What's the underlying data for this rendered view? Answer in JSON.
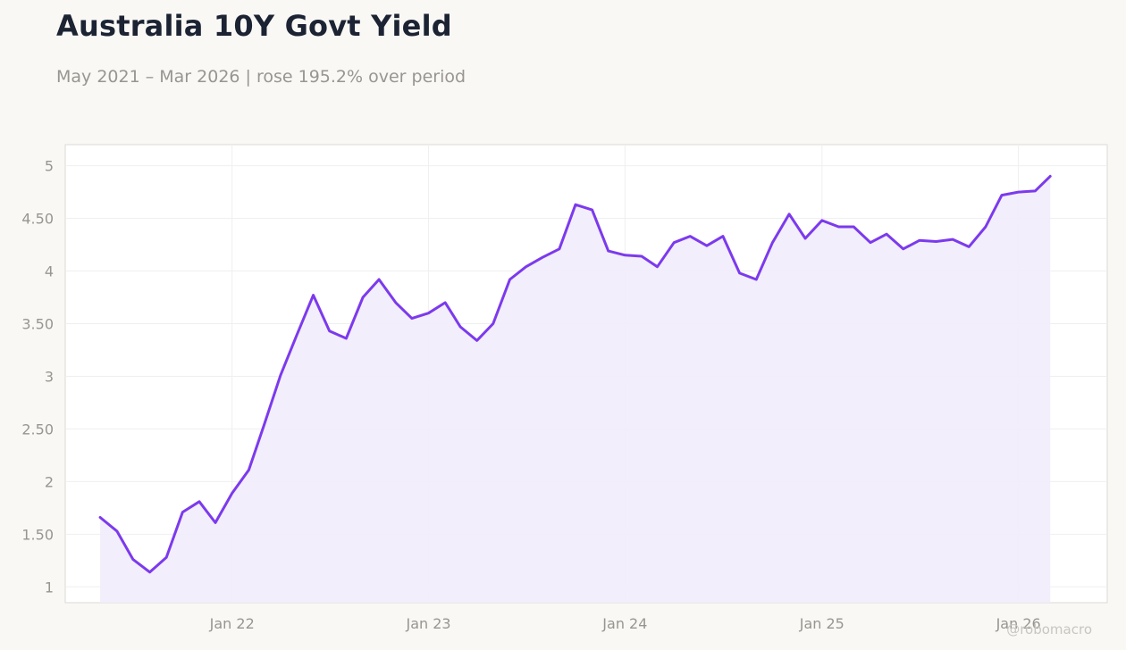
{
  "title": "Australia 10Y Govt Yield",
  "subtitle": "May 2021 – Mar 2026 | rose 195.2% over period",
  "watermark": "@robomacro",
  "colors": {
    "line": "#7c3aed",
    "fill": "#f1ecfc",
    "grid": "#efefef",
    "plot_bg": "#ffffff",
    "page_bg": "#f9f8f5"
  },
  "chart_data": {
    "type": "area",
    "title": "Australia 10Y Govt Yield",
    "subtitle": "May 2021 – Mar 2026 | rose 195.2% over period",
    "xlabel": "",
    "ylabel": "",
    "xlim": [
      "2021-02-25",
      "2026-06-15"
    ],
    "ylim": [
      0.85,
      5.2
    ],
    "grid": true,
    "x_ticks": [
      {
        "label": "Jan 22",
        "date": "2022-01-01"
      },
      {
        "label": "Jan 23",
        "date": "2023-01-01"
      },
      {
        "label": "Jan 24",
        "date": "2024-01-01"
      },
      {
        "label": "Jan 25",
        "date": "2025-01-01"
      },
      {
        "label": "Jan 26",
        "date": "2026-01-01"
      }
    ],
    "y_ticks": [
      {
        "label": "1",
        "value": 1
      },
      {
        "label": "1.50",
        "value": 1.5
      },
      {
        "label": "2",
        "value": 2
      },
      {
        "label": "2.50",
        "value": 2.5
      },
      {
        "label": "3",
        "value": 3
      },
      {
        "label": "3.50",
        "value": 3.5
      },
      {
        "label": "4",
        "value": 4
      },
      {
        "label": "4.50",
        "value": 4.5
      },
      {
        "label": "5",
        "value": 5
      }
    ],
    "series": [
      {
        "x": [
          "2021-05-01",
          "2021-06-01",
          "2021-07-01",
          "2021-08-01",
          "2021-09-01",
          "2021-10-01",
          "2021-11-01",
          "2021-12-01",
          "2022-01-01",
          "2022-02-01",
          "2022-03-01",
          "2022-04-01",
          "2022-05-01",
          "2022-06-01",
          "2022-07-01",
          "2022-08-01",
          "2022-09-01",
          "2022-10-01",
          "2022-11-01",
          "2022-12-01",
          "2023-01-01",
          "2023-02-01",
          "2023-03-01",
          "2023-04-01",
          "2023-05-01",
          "2023-06-01",
          "2023-07-01",
          "2023-08-01",
          "2023-09-01",
          "2023-10-01",
          "2023-11-01",
          "2023-12-01",
          "2024-01-01",
          "2024-02-01",
          "2024-03-01",
          "2024-04-01",
          "2024-05-01",
          "2024-06-01",
          "2024-07-01",
          "2024-08-01",
          "2024-09-01",
          "2024-10-01",
          "2024-11-01",
          "2024-12-01",
          "2025-01-01",
          "2025-02-01",
          "2025-03-01",
          "2025-04-01",
          "2025-05-01",
          "2025-06-01",
          "2025-07-01",
          "2025-08-01",
          "2025-09-01",
          "2025-10-01",
          "2025-11-01",
          "2025-12-01",
          "2026-01-01",
          "2026-02-01",
          "2026-03-01"
        ],
        "values": [
          1.66,
          1.53,
          1.26,
          1.14,
          1.28,
          1.71,
          1.81,
          1.61,
          1.89,
          2.11,
          2.53,
          3.01,
          3.39,
          3.77,
          3.43,
          3.36,
          3.75,
          3.92,
          3.7,
          3.55,
          3.6,
          3.7,
          3.47,
          3.34,
          3.5,
          3.92,
          4.04,
          4.13,
          4.21,
          4.63,
          4.58,
          4.19,
          4.15,
          4.14,
          4.04,
          4.27,
          4.33,
          4.24,
          4.33,
          3.98,
          3.92,
          4.27,
          4.54,
          4.31,
          4.48,
          4.42,
          4.42,
          4.27,
          4.35,
          4.21,
          4.29,
          4.28,
          4.3,
          4.23,
          4.42,
          4.72,
          4.75,
          4.76,
          4.9
        ]
      }
    ]
  }
}
